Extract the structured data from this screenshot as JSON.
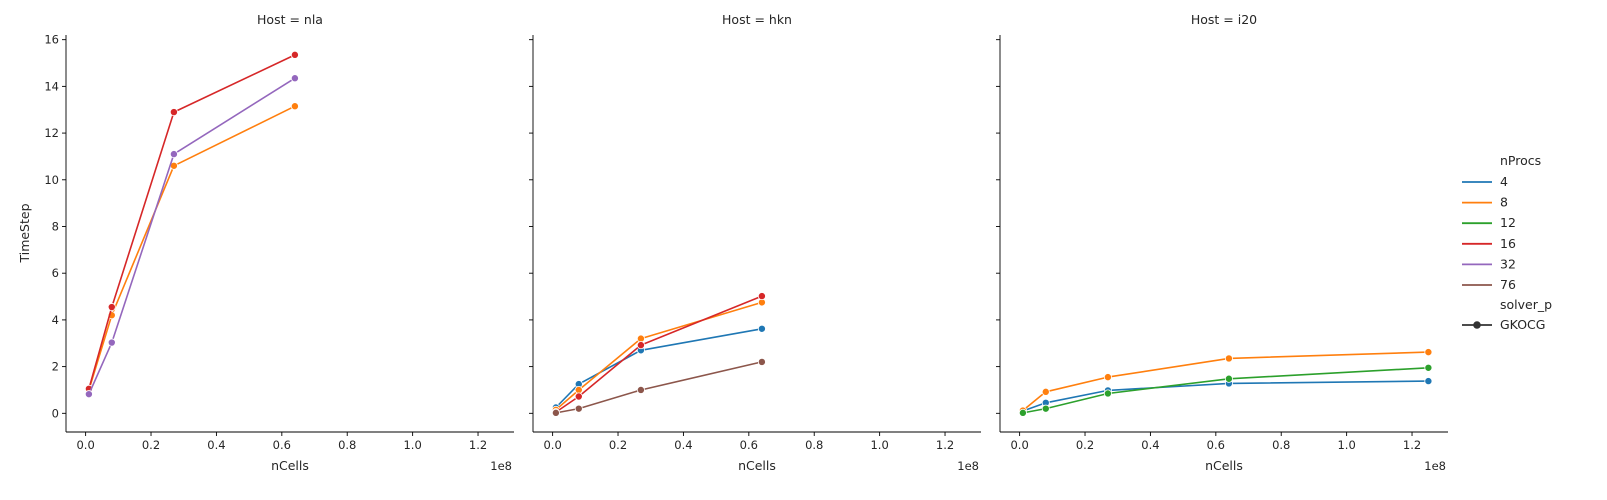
{
  "figure": {
    "shared_ylabel": "TimeStep",
    "legend": {
      "hue_title": "nProcs",
      "hue_entries": [
        {
          "label": "4",
          "color": "#1f77b4"
        },
        {
          "label": "8",
          "color": "#ff7f0e"
        },
        {
          "label": "12",
          "color": "#2ca02c"
        },
        {
          "label": "16",
          "color": "#d62728"
        },
        {
          "label": "32",
          "color": "#9467bd"
        },
        {
          "label": "76",
          "color": "#8c564b"
        }
      ],
      "style_title": "solver_p",
      "style_entries": [
        {
          "label": "GKOCG",
          "color": "#333333"
        }
      ]
    }
  },
  "chart_data": [
    {
      "type": "line",
      "title": "Host = nla",
      "xlabel": "nCells",
      "ylabel": "TimeStep",
      "x_offset_label": "1e8",
      "xlim": [
        -0.06,
        1.31
      ],
      "ylim": [
        -0.8,
        16.2
      ],
      "xticks": [
        0.0,
        0.2,
        0.4,
        0.6,
        0.8,
        1.0,
        1.2
      ],
      "xtick_labels": [
        "0.0",
        "0.2",
        "0.4",
        "0.6",
        "0.8",
        "1.0",
        "1.2"
      ],
      "yticks": [
        0,
        2,
        4,
        6,
        8,
        10,
        12,
        14,
        16
      ],
      "ytick_labels": [
        "0",
        "2",
        "4",
        "6",
        "8",
        "10",
        "12",
        "14",
        "16"
      ],
      "grid": false,
      "series": [
        {
          "name": "8",
          "color": "#ff7f0e",
          "x": [
            0.01,
            0.08,
            0.27,
            0.64
          ],
          "y": [
            1.0,
            4.2,
            10.6,
            13.15
          ]
        },
        {
          "name": "16",
          "color": "#d62728",
          "x": [
            0.01,
            0.08,
            0.27,
            0.64
          ],
          "y": [
            1.05,
            4.55,
            12.9,
            15.35
          ]
        },
        {
          "name": "32",
          "color": "#9467bd",
          "x": [
            0.01,
            0.08,
            0.27,
            0.64
          ],
          "y": [
            0.82,
            3.03,
            11.1,
            14.35
          ]
        }
      ]
    },
    {
      "type": "line",
      "title": "Host = hkn",
      "xlabel": "nCells",
      "ylabel": "",
      "x_offset_label": "1e8",
      "xlim": [
        -0.06,
        1.31
      ],
      "ylim": [
        -0.8,
        16.2
      ],
      "xticks": [
        0.0,
        0.2,
        0.4,
        0.6,
        0.8,
        1.0,
        1.2
      ],
      "xtick_labels": [
        "0.0",
        "0.2",
        "0.4",
        "0.6",
        "0.8",
        "1.0",
        "1.2"
      ],
      "yticks": [
        0,
        2,
        4,
        6,
        8,
        10,
        12,
        14,
        16
      ],
      "ytick_labels": [],
      "grid": false,
      "series": [
        {
          "name": "4",
          "color": "#1f77b4",
          "x": [
            0.01,
            0.08,
            0.27,
            0.64
          ],
          "y": [
            0.25,
            1.25,
            2.7,
            3.62
          ]
        },
        {
          "name": "8",
          "color": "#ff7f0e",
          "x": [
            0.01,
            0.08,
            0.27,
            0.64
          ],
          "y": [
            0.15,
            1.0,
            3.2,
            4.75
          ]
        },
        {
          "name": "16",
          "color": "#d62728",
          "x": [
            0.01,
            0.08,
            0.27,
            0.64
          ],
          "y": [
            0.05,
            0.72,
            2.92,
            5.02
          ]
        },
        {
          "name": "76",
          "color": "#8c564b",
          "x": [
            0.01,
            0.08,
            0.27,
            0.64
          ],
          "y": [
            0.02,
            0.2,
            1.0,
            2.2
          ]
        }
      ]
    },
    {
      "type": "line",
      "title": "Host = i20",
      "xlabel": "nCells",
      "ylabel": "",
      "x_offset_label": "1e8",
      "xlim": [
        -0.06,
        1.31
      ],
      "ylim": [
        -0.8,
        16.2
      ],
      "xticks": [
        0.0,
        0.2,
        0.4,
        0.6,
        0.8,
        1.0,
        1.2
      ],
      "xtick_labels": [
        "0.0",
        "0.2",
        "0.4",
        "0.6",
        "0.8",
        "1.0",
        "1.2"
      ],
      "yticks": [
        0,
        2,
        4,
        6,
        8,
        10,
        12,
        14,
        16
      ],
      "ytick_labels": [],
      "grid": false,
      "series": [
        {
          "name": "4",
          "color": "#1f77b4",
          "x": [
            0.01,
            0.08,
            0.27,
            0.64,
            1.25
          ],
          "y": [
            0.1,
            0.45,
            0.98,
            1.28,
            1.38
          ]
        },
        {
          "name": "8",
          "color": "#ff7f0e",
          "x": [
            0.01,
            0.08,
            0.27,
            0.64,
            1.25
          ],
          "y": [
            0.12,
            0.92,
            1.55,
            2.35,
            2.62
          ]
        },
        {
          "name": "12",
          "color": "#2ca02c",
          "x": [
            0.01,
            0.08,
            0.27,
            0.64,
            1.25
          ],
          "y": [
            0.02,
            0.2,
            0.85,
            1.48,
            1.95
          ]
        }
      ]
    }
  ]
}
